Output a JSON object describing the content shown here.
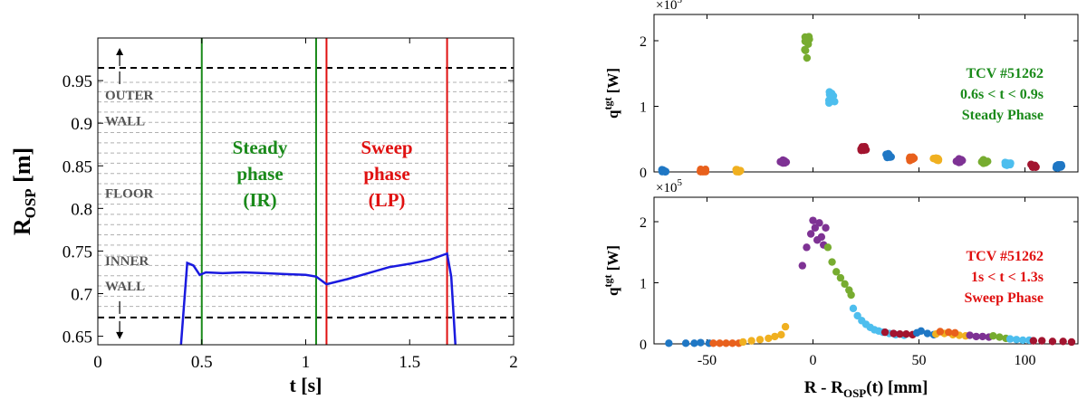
{
  "chart_data": [
    {
      "type": "line",
      "xlabel": "t [s]",
      "ylabel_main": "R",
      "ylabel_sub": "OSP",
      "ylabel_unit": " [m]",
      "xlim": [
        0,
        2
      ],
      "ylim": [
        0.64,
        1.0
      ],
      "xticks": [
        "0",
        "0.5",
        "1",
        "1.5",
        "2"
      ],
      "yticks": [
        "0.65",
        "0.7",
        "0.75",
        "0.8",
        "0.85",
        "0.9",
        "0.95"
      ],
      "ytick_values": [
        0.65,
        0.7,
        0.75,
        0.8,
        0.85,
        0.9,
        0.95
      ],
      "xtick_values": [
        0,
        0.5,
        1,
        1.5,
        2
      ],
      "boundaries": [
        0.965,
        0.672
      ],
      "tile_lines": [
        0.948,
        0.937,
        0.925,
        0.913,
        0.901,
        0.889,
        0.877,
        0.865,
        0.853,
        0.841,
        0.829,
        0.817,
        0.805,
        0.793,
        0.781,
        0.769,
        0.757,
        0.745,
        0.733,
        0.721,
        0.709,
        0.697,
        0.685
      ],
      "regions": [
        {
          "label1": "OUTER",
          "label2": "WALL",
          "y1": 0.933,
          "y2": 0.903
        },
        {
          "label1": "FLOOR",
          "label2": "",
          "y1": 0.818,
          "y2": null
        },
        {
          "label1": "INNER",
          "label2": "WALL",
          "y1": 0.739,
          "y2": 0.709
        }
      ],
      "phase_lines": [
        {
          "t": 0.5,
          "color": "#1a8a1a"
        },
        {
          "t": 1.05,
          "color": "#1a8a1a"
        },
        {
          "t": 1.1,
          "color": "#e01010"
        },
        {
          "t": 1.68,
          "color": "#e01010"
        }
      ],
      "phase_labels": [
        {
          "lines": [
            "Steady",
            "phase",
            "(IR)"
          ],
          "t": 0.78,
          "color": "#1a8a1a"
        },
        {
          "lines": [
            "Sweep",
            "phase",
            "(LP)"
          ],
          "t": 1.39,
          "color": "#e01010"
        }
      ],
      "series": [
        {
          "color": "#1a1adf",
          "x": [
            0.4,
            0.43,
            0.46,
            0.49,
            0.52,
            0.6,
            0.7,
            0.8,
            0.9,
            1.0,
            1.05,
            1.1,
            1.2,
            1.3,
            1.4,
            1.5,
            1.6,
            1.68,
            1.7,
            1.72
          ],
          "y": [
            0.64,
            0.736,
            0.733,
            0.722,
            0.725,
            0.724,
            0.725,
            0.724,
            0.723,
            0.722,
            0.72,
            0.711,
            0.717,
            0.724,
            0.731,
            0.735,
            0.74,
            0.747,
            0.72,
            0.64
          ]
        }
      ]
    },
    {
      "type": "scatter",
      "ylabel_main": "q",
      "ylabel_sup": "tgt",
      "ylabel_unit": " [W]",
      "multiplier_base": "×10",
      "multiplier_exp": "5",
      "xlim": [
        -75,
        125
      ],
      "ylim": [
        0,
        2.4
      ],
      "yticks": [
        "0",
        "1",
        "2"
      ],
      "ytick_values": [
        0,
        1,
        2
      ],
      "xtick_values": [
        -50,
        0,
        50,
        100
      ],
      "annotation": {
        "lines": [
          "TCV #51262",
          "0.6s < t < 0.9s",
          "Steady Phase"
        ],
        "color": "#1a8a1a"
      },
      "clusters": [
        {
          "x": -70,
          "y": 0.01,
          "color": "#1f77c4"
        },
        {
          "x": -52,
          "y": 0.01,
          "color": "#e8601c"
        },
        {
          "x": -35,
          "y": 0.01,
          "color": "#f0b020"
        },
        {
          "x": -14,
          "y": 0.16,
          "color": "#7e3294"
        },
        {
          "x": -3,
          "y": 1.9,
          "color": "#77ac30"
        },
        {
          "x": 9,
          "y": 1.12,
          "color": "#4dbeee"
        },
        {
          "x": 24,
          "y": 0.36,
          "color": "#a2142f"
        },
        {
          "x": 36,
          "y": 0.25,
          "color": "#1f77c4"
        },
        {
          "x": 47,
          "y": 0.2,
          "color": "#e8601c"
        },
        {
          "x": 58,
          "y": 0.18,
          "color": "#f0b020"
        },
        {
          "x": 69,
          "y": 0.17,
          "color": "#7e3294"
        },
        {
          "x": 81,
          "y": 0.16,
          "color": "#77ac30"
        },
        {
          "x": 92,
          "y": 0.13,
          "color": "#4dbeee"
        },
        {
          "x": 104,
          "y": 0.1,
          "color": "#a2142f"
        },
        {
          "x": 116,
          "y": 0.08,
          "color": "#1f77c4"
        }
      ]
    },
    {
      "type": "scatter",
      "xlabel_main": "R - R",
      "xlabel_sub": "OSP",
      "xlabel_unit": "(t) [mm]",
      "ylabel_main": "q",
      "ylabel_sup": "tgt",
      "ylabel_unit": " [W]",
      "multiplier_base": "×10",
      "multiplier_exp": "5",
      "xlim": [
        -75,
        125
      ],
      "ylim": [
        0,
        2.4
      ],
      "xticks": [
        "-50",
        "0",
        "50",
        "100"
      ],
      "xtick_values": [
        -50,
        0,
        50,
        100
      ],
      "yticks": [
        "0",
        "1",
        "2"
      ],
      "ytick_values": [
        0,
        1,
        2
      ],
      "annotation": {
        "lines": [
          "TCV #51262",
          "1s < t < 1.3s",
          "Sweep Phase"
        ],
        "color": "#e01010"
      },
      "points": [
        {
          "color": "#1f77c4",
          "x": [
            -68,
            -60,
            -56,
            -53,
            -49
          ],
          "y": [
            0.01,
            0.01,
            0.01,
            0.02,
            0.01
          ]
        },
        {
          "color": "#e8601c",
          "x": [
            -47,
            -44,
            -41,
            -38,
            -35
          ],
          "y": [
            0.01,
            0.01,
            0.01,
            0.01,
            0.01
          ]
        },
        {
          "color": "#f0b020",
          "x": [
            -33,
            -29,
            -25,
            -21,
            -18,
            -15,
            -13
          ],
          "y": [
            0.03,
            0.05,
            0.07,
            0.09,
            0.12,
            0.15,
            0.28
          ]
        },
        {
          "color": "#7e3294",
          "x": [
            -5,
            -3,
            -1,
            0,
            1,
            2,
            3,
            4,
            5,
            6
          ],
          "y": [
            1.28,
            1.58,
            1.8,
            2.02,
            1.9,
            1.7,
            1.98,
            1.75,
            1.62,
            1.9
          ]
        },
        {
          "color": "#77ac30",
          "x": [
            7,
            9,
            11,
            13,
            15,
            17,
            18
          ],
          "y": [
            1.58,
            1.34,
            1.18,
            1.08,
            0.98,
            0.88,
            0.8
          ]
        },
        {
          "color": "#4dbeee",
          "x": [
            19,
            21,
            23,
            25,
            27,
            29,
            31,
            33,
            36,
            39,
            43
          ],
          "y": [
            0.58,
            0.46,
            0.38,
            0.32,
            0.27,
            0.23,
            0.21,
            0.19,
            0.17,
            0.15,
            0.14
          ]
        },
        {
          "color": "#a2142f",
          "x": [
            34,
            38,
            41,
            44,
            47
          ],
          "y": [
            0.19,
            0.17,
            0.16,
            0.16,
            0.15
          ]
        },
        {
          "color": "#1f77c4",
          "x": [
            49,
            51,
            54,
            57
          ],
          "y": [
            0.18,
            0.21,
            0.17,
            0.15
          ]
        },
        {
          "color": "#f0b020",
          "x": [
            58,
            62,
            66,
            69,
            72
          ],
          "y": [
            0.16,
            0.17,
            0.15,
            0.14,
            0.13
          ]
        },
        {
          "color": "#e8601c",
          "x": [
            60,
            64,
            67
          ],
          "y": [
            0.2,
            0.19,
            0.18
          ]
        },
        {
          "color": "#7e3294",
          "x": [
            74,
            77,
            80,
            83
          ],
          "y": [
            0.14,
            0.12,
            0.12,
            0.11
          ]
        },
        {
          "color": "#77ac30",
          "x": [
            85,
            88,
            91
          ],
          "y": [
            0.13,
            0.11,
            0.09
          ]
        },
        {
          "color": "#4dbeee",
          "x": [
            93,
            96,
            99,
            102
          ],
          "y": [
            0.08,
            0.07,
            0.06,
            0.06
          ]
        },
        {
          "color": "#a2142f",
          "x": [
            104,
            108,
            113,
            118,
            122
          ],
          "y": [
            0.05,
            0.05,
            0.04,
            0.04,
            0.03
          ]
        }
      ]
    }
  ]
}
